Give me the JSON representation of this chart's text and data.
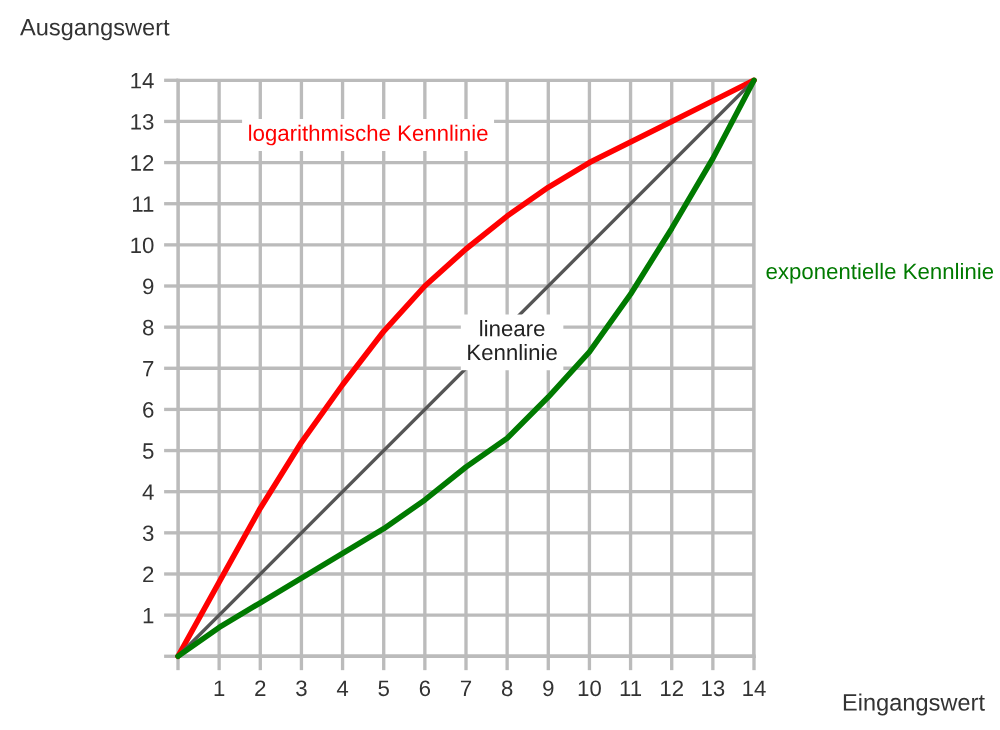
{
  "chart_data": {
    "type": "line",
    "xlabel": "Eingangswert",
    "ylabel": "Ausgangswert",
    "x": [
      0,
      1,
      2,
      3,
      4,
      5,
      6,
      7,
      8,
      9,
      10,
      11,
      12,
      13,
      14
    ],
    "series": [
      {
        "name": "logarithmische Kennlinie",
        "color": "#ff0000",
        "values": [
          0,
          1.8,
          3.6,
          5.2,
          6.6,
          7.9,
          9.0,
          9.9,
          10.7,
          11.4,
          12.0,
          12.5,
          13.0,
          13.5,
          14
        ]
      },
      {
        "name": "lineare Kennlinie",
        "color": "#555555",
        "x": [
          0,
          14
        ],
        "values": [
          0,
          14
        ]
      },
      {
        "name": "exponentielle Kennlinie",
        "color": "#007a00",
        "values": [
          0,
          0.7,
          1.3,
          1.9,
          2.5,
          3.1,
          3.8,
          4.6,
          5.3,
          6.3,
          7.4,
          8.8,
          10.4,
          12.1,
          14
        ]
      }
    ],
    "xlim": [
      0,
      14
    ],
    "ylim": [
      0,
      14
    ],
    "xticks": [
      {
        "value": 0,
        "label": null
      },
      1,
      2,
      3,
      4,
      5,
      6,
      7,
      8,
      9,
      10,
      11,
      12,
      13,
      14
    ],
    "yticks": [
      {
        "value": 0,
        "label": null
      },
      1,
      2,
      3,
      4,
      5,
      6,
      7,
      8,
      9,
      10,
      11,
      12,
      13,
      14
    ],
    "grid": true,
    "legend": false,
    "marker": "none",
    "line_style": "solid"
  }
}
